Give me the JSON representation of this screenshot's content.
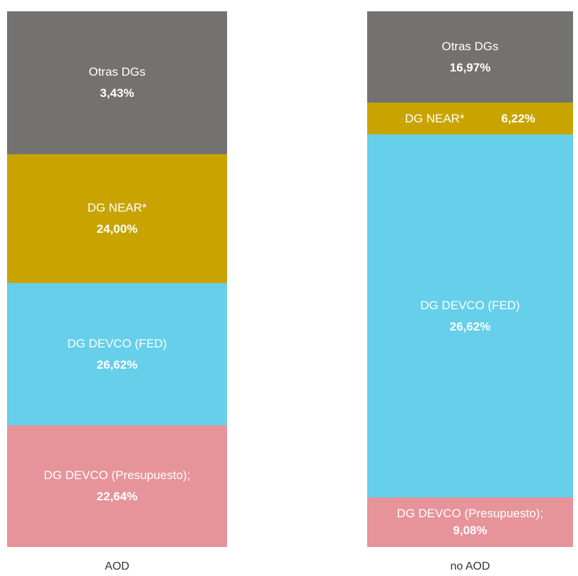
{
  "columns": [
    {
      "label": "AOD",
      "segments": [
        {
          "name": "Otras  DGs",
          "value": "3,43%"
        },
        {
          "name": "DG NEAR*",
          "value": "24,00%"
        },
        {
          "name": "DG DEVCO (FED)",
          "value": "26,62%"
        },
        {
          "name": "DG DEVCO (Presupuesto);",
          "value": "22,64%"
        }
      ]
    },
    {
      "label": "no AOD",
      "segments": [
        {
          "name": "Otras  DGs",
          "value": "16,97%"
        },
        {
          "name": "DG NEAR*",
          "value": "6,22%"
        },
        {
          "name": "DG DEVCO (FED)",
          "value": "26,62%"
        },
        {
          "name": "DG DEVCO (Presupuesto);",
          "value": "9,08%"
        }
      ]
    }
  ]
}
